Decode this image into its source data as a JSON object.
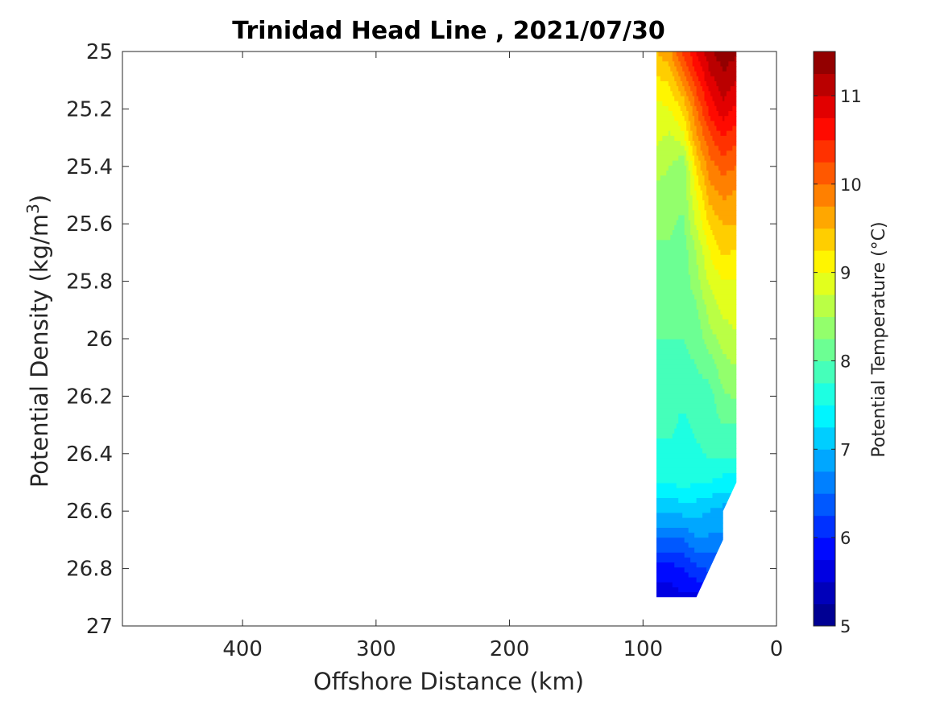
{
  "chart_data": {
    "type": "heatmap",
    "subtype": "filled-contour",
    "title": "Trinidad Head Line , 2021/07/30",
    "xlabel": "Offshore Distance (km)",
    "ylabel_main": "Potential Density (kg/m",
    "ylabel_sup": "3",
    "ylabel_close": ")",
    "colorbar_label": "Potential Temperature (°C)",
    "x_reversed": true,
    "y_reversed": true,
    "xlim": [
      0,
      490
    ],
    "ylim": [
      25,
      27
    ],
    "xticks": [
      400,
      300,
      200,
      100,
      0
    ],
    "yticks": [
      25,
      25.2,
      25.4,
      25.6,
      25.8,
      26,
      26.2,
      26.4,
      26.6,
      26.8,
      27
    ],
    "xtick_labels": [
      "400",
      "300",
      "200",
      "100",
      "0"
    ],
    "ytick_labels": [
      "25",
      "25.2",
      "25.4",
      "25.6",
      "25.8",
      "26",
      "26.2",
      "26.4",
      "26.6",
      "26.8",
      "27"
    ],
    "colorbar": {
      "range": [
        5,
        11.5
      ],
      "levels": 26,
      "ticks": [
        5,
        6,
        7,
        8,
        9,
        10,
        11
      ],
      "tick_labels": [
        "5",
        "6",
        "7",
        "8",
        "9",
        "10",
        "11"
      ],
      "colormap": "jet"
    },
    "data_extent": {
      "x_range": [
        30,
        90
      ],
      "y_range": [
        25,
        26.9
      ]
    },
    "x": [
      90,
      80,
      70,
      60,
      50,
      40,
      30
    ],
    "y": [
      25.0,
      25.1,
      25.2,
      25.3,
      25.4,
      25.5,
      25.6,
      25.7,
      25.8,
      25.9,
      26.0,
      26.1,
      26.2,
      26.3,
      26.4,
      26.5,
      26.6,
      26.7,
      26.8,
      26.9
    ],
    "z": [
      [
        9.5,
        9.7,
        10.3,
        10.8,
        11.2,
        11.4,
        11.3
      ],
      [
        9.2,
        9.3,
        9.8,
        10.4,
        10.9,
        11.2,
        11.0
      ],
      [
        8.9,
        9.0,
        9.3,
        10.0,
        10.6,
        10.9,
        10.7
      ],
      [
        8.8,
        8.7,
        8.9,
        9.7,
        10.2,
        10.5,
        10.3
      ],
      [
        8.6,
        8.5,
        8.3,
        9.3,
        9.9,
        10.1,
        10.0
      ],
      [
        8.4,
        8.4,
        8.3,
        9.0,
        9.6,
        9.8,
        9.7
      ],
      [
        8.3,
        8.3,
        8.2,
        8.8,
        9.3,
        9.5,
        9.5
      ],
      [
        8.2,
        8.2,
        8.1,
        8.5,
        9.0,
        9.3,
        9.2
      ],
      [
        8.1,
        8.1,
        8.1,
        8.4,
        8.8,
        9.0,
        9.0
      ],
      [
        8.1,
        8.1,
        8.0,
        8.2,
        8.6,
        8.8,
        8.9
      ],
      [
        8.0,
        8.0,
        8.0,
        8.1,
        8.4,
        8.6,
        8.7
      ],
      [
        7.9,
        7.9,
        7.9,
        8.0,
        8.1,
        8.4,
        8.5
      ],
      [
        7.8,
        7.8,
        7.8,
        7.9,
        7.9,
        8.2,
        8.3
      ],
      [
        7.8,
        7.8,
        7.7,
        7.8,
        7.9,
        8.0,
        8.0
      ],
      [
        7.7,
        7.7,
        7.7,
        7.7,
        7.8,
        7.8,
        7.8
      ],
      [
        7.5,
        7.5,
        7.6,
        7.5,
        7.5,
        7.4,
        7.4
      ],
      [
        7.0,
        7.0,
        7.1,
        7.1,
        7.0,
        6.9,
        null
      ],
      [
        6.5,
        6.5,
        6.5,
        6.7,
        6.7,
        6.7,
        null
      ],
      [
        5.9,
        5.9,
        6.0,
        6.2,
        6.3,
        null,
        null
      ],
      [
        5.6,
        5.6,
        5.7,
        5.7,
        null,
        null,
        null
      ]
    ]
  }
}
